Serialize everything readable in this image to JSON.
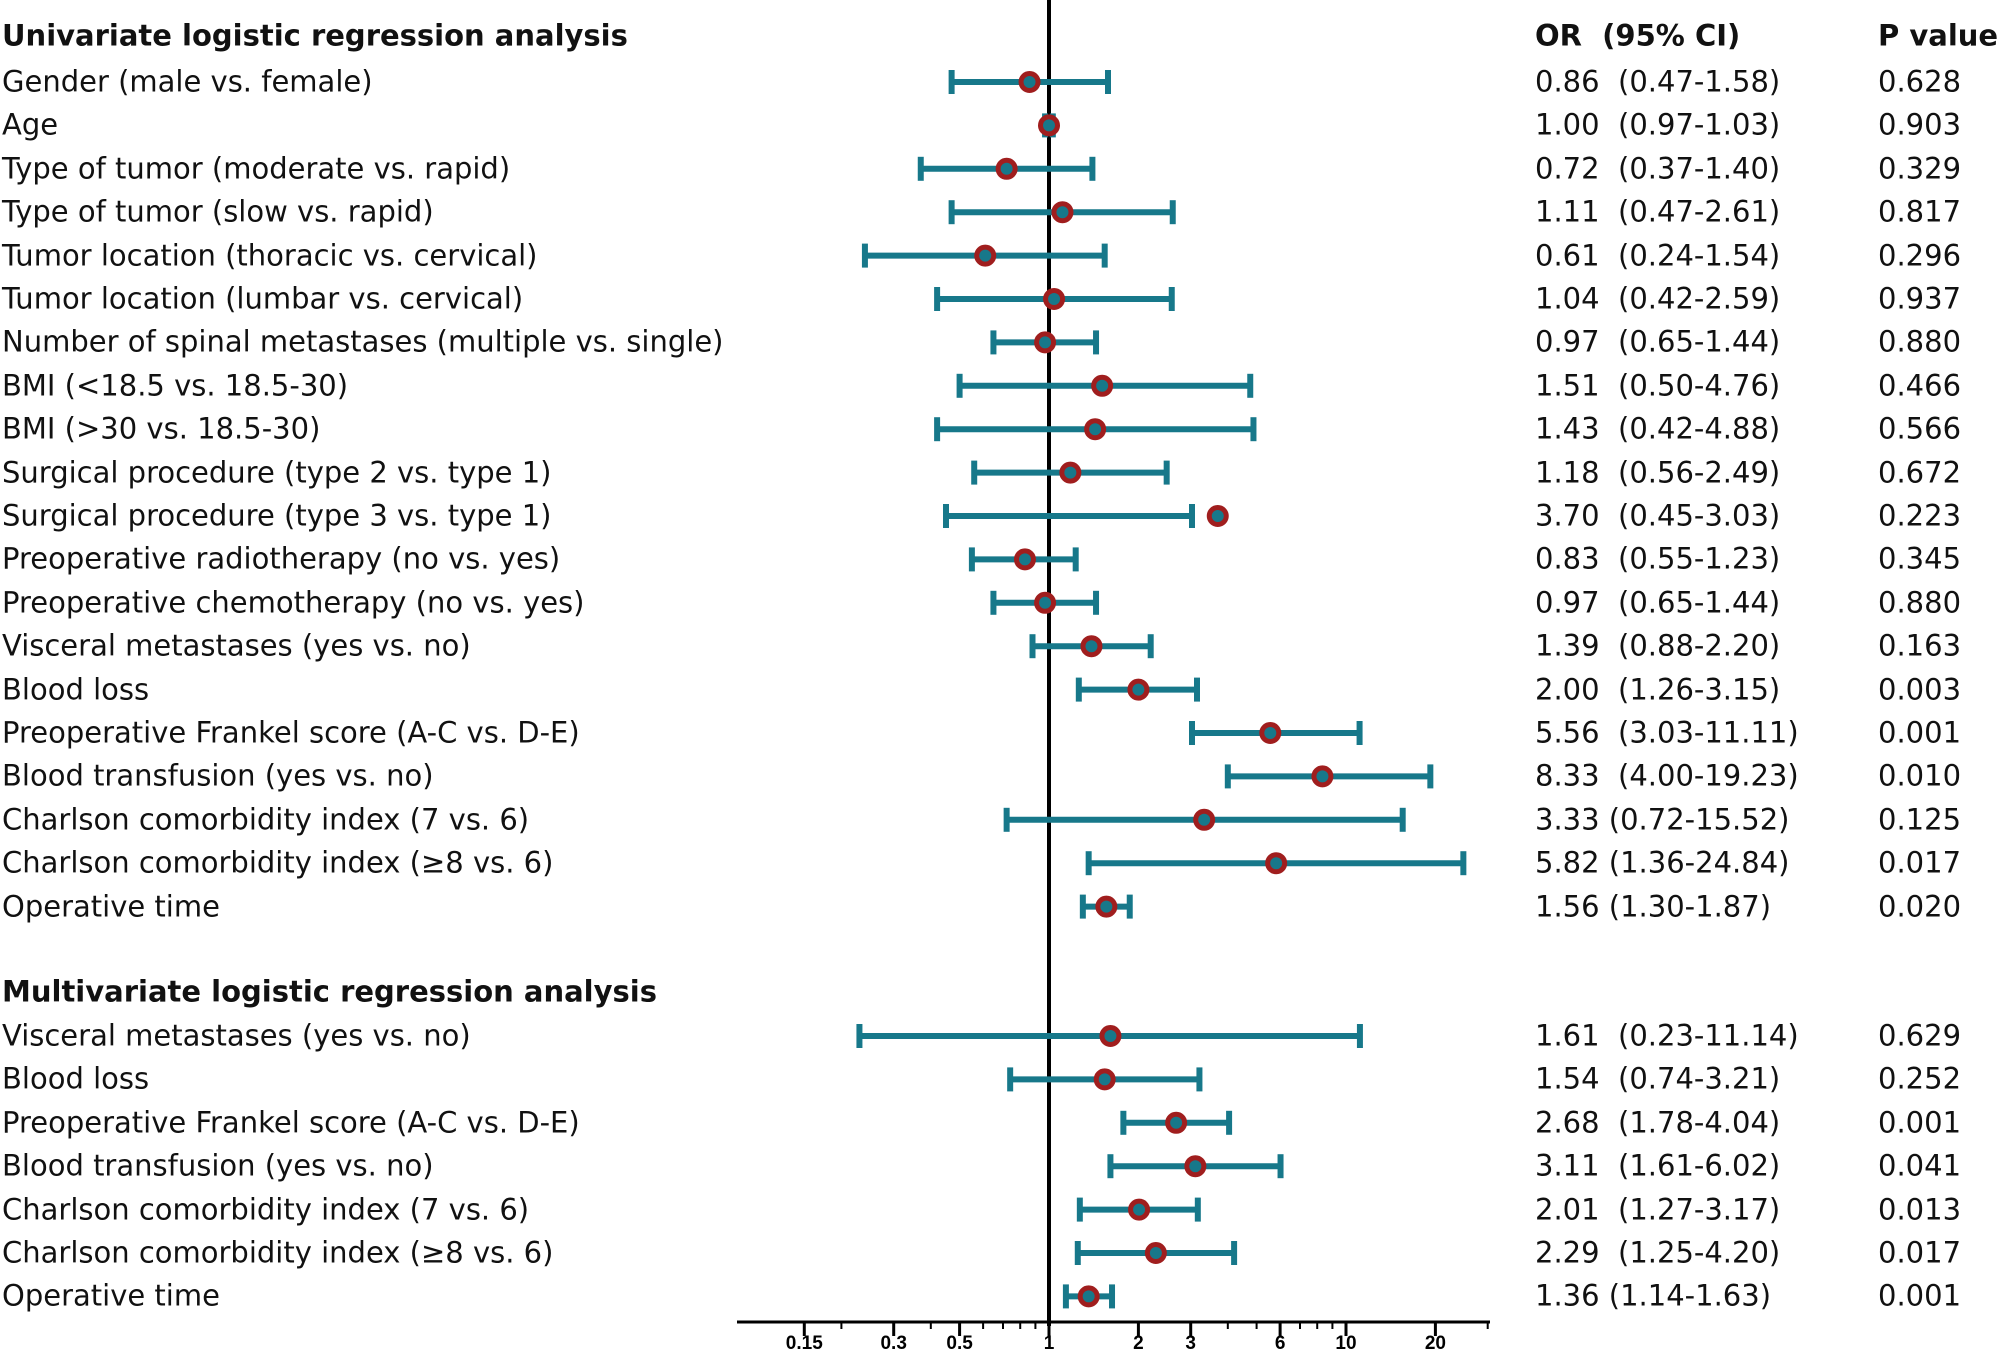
{
  "chart_data": {
    "type": "forest",
    "reference_value": 1,
    "x_scale": "log",
    "xlim": [
      0.1,
      30
    ],
    "x_ticks": [
      "0.15",
      "0.3",
      "0.5",
      "1",
      "2",
      "3",
      "6",
      "10",
      "20"
    ],
    "marker_color": "#a01e1e",
    "bar_color": "#17788a",
    "columns": {
      "or_header": "OR  (95% CI)",
      "p_header": "P value"
    },
    "sections": [
      {
        "title": "Univariate logistic regression analysis",
        "rows": [
          {
            "label": "Gender (male vs. female)",
            "or": 0.86,
            "lower": 0.47,
            "upper": 1.58,
            "or_text": "0.86  (0.47-1.58)",
            "p": "0.628"
          },
          {
            "label": "Age",
            "or": 1.0,
            "lower": 0.97,
            "upper": 1.03,
            "or_text": "1.00  (0.97-1.03)",
            "p": "0.903"
          },
          {
            "label": "Type of tumor (moderate vs. rapid)",
            "or": 0.72,
            "lower": 0.37,
            "upper": 1.4,
            "or_text": "0.72  (0.37-1.40)",
            "p": "0.329"
          },
          {
            "label": "Type of tumor (slow vs. rapid)",
            "or": 1.11,
            "lower": 0.47,
            "upper": 2.61,
            "or_text": "1.11  (0.47-2.61)",
            "p": "0.817"
          },
          {
            "label": "Tumor location (thoracic vs. cervical)",
            "or": 0.61,
            "lower": 0.24,
            "upper": 1.54,
            "or_text": "0.61  (0.24-1.54)",
            "p": "0.296"
          },
          {
            "label": "Tumor location (lumbar vs. cervical)",
            "or": 1.04,
            "lower": 0.42,
            "upper": 2.59,
            "or_text": "1.04  (0.42-2.59)",
            "p": "0.937"
          },
          {
            "label": "Number of spinal metastases (multiple vs. single)",
            "or": 0.97,
            "lower": 0.65,
            "upper": 1.44,
            "or_text": "0.97  (0.65-1.44)",
            "p": "0.880"
          },
          {
            "label": "BMI (<18.5 vs. 18.5-30)",
            "or": 1.51,
            "lower": 0.5,
            "upper": 4.76,
            "or_text": "1.51  (0.50-4.76)",
            "p": "0.466"
          },
          {
            "label": "BMI (>30 vs. 18.5-30)",
            "or": 1.43,
            "lower": 0.42,
            "upper": 4.88,
            "or_text": "1.43  (0.42-4.88)",
            "p": "0.566"
          },
          {
            "label": "Surgical procedure (type 2 vs. type 1)",
            "or": 1.18,
            "lower": 0.56,
            "upper": 2.49,
            "or_text": "1.18  (0.56-2.49)",
            "p": "0.672"
          },
          {
            "label": "Surgical procedure (type 3 vs. type 1)",
            "or": 3.7,
            "lower": 0.45,
            "upper": 3.03,
            "or_text": "3.70  (0.45-3.03)",
            "p": "0.223"
          },
          {
            "label": "Preoperative radiotherapy (no vs. yes)",
            "or": 0.83,
            "lower": 0.55,
            "upper": 1.23,
            "or_text": "0.83  (0.55-1.23)",
            "p": "0.345"
          },
          {
            "label": "Preoperative chemotherapy (no vs. yes)",
            "or": 0.97,
            "lower": 0.65,
            "upper": 1.44,
            "or_text": "0.97  (0.65-1.44)",
            "p": "0.880"
          },
          {
            "label": "Visceral metastases (yes vs. no)",
            "or": 1.39,
            "lower": 0.88,
            "upper": 2.2,
            "or_text": "1.39  (0.88-2.20)",
            "p": "0.163"
          },
          {
            "label": "Blood loss",
            "or": 2.0,
            "lower": 1.26,
            "upper": 3.15,
            "or_text": "2.00  (1.26-3.15)",
            "p": "0.003"
          },
          {
            "label": "Preoperative Frankel score (A-C vs. D-E)",
            "or": 5.56,
            "lower": 3.03,
            "upper": 11.11,
            "or_text": "5.56  (3.03-11.11)",
            "p": "0.001"
          },
          {
            "label": "Blood transfusion (yes vs. no)",
            "or": 8.33,
            "lower": 4.0,
            "upper": 19.23,
            "or_text": "8.33  (4.00-19.23)",
            "p": "0.010"
          },
          {
            "label": "Charlson comorbidity index (7 vs. 6)",
            "or": 3.33,
            "lower": 0.72,
            "upper": 15.52,
            "or_text": "3.33 (0.72-15.52)",
            "p": "0.125"
          },
          {
            "label": "Charlson comorbidity index (≥8 vs. 6)",
            "or": 5.82,
            "lower": 1.36,
            "upper": 24.84,
            "or_text": "5.82 (1.36-24.84)",
            "p": "0.017"
          },
          {
            "label": "Operative time",
            "or": 1.56,
            "lower": 1.3,
            "upper": 1.87,
            "or_text": "1.56 (1.30-1.87)",
            "p": "0.020"
          }
        ]
      },
      {
        "title": "Multivariate logistic regression analysis",
        "rows": [
          {
            "label": "Visceral metastases (yes vs. no)",
            "or": 1.61,
            "lower": 0.23,
            "upper": 11.14,
            "or_text": "1.61  (0.23-11.14)",
            "p": "0.629"
          },
          {
            "label": "Blood loss",
            "or": 1.54,
            "lower": 0.74,
            "upper": 3.21,
            "or_text": "1.54  (0.74-3.21)",
            "p": "0.252"
          },
          {
            "label": "Preoperative Frankel score (A-C vs. D-E)",
            "or": 2.68,
            "lower": 1.78,
            "upper": 4.04,
            "or_text": "2.68  (1.78-4.04)",
            "p": "0.001"
          },
          {
            "label": "Blood transfusion (yes vs. no)",
            "or": 3.11,
            "lower": 1.61,
            "upper": 6.02,
            "or_text": "3.11  (1.61-6.02)",
            "p": "0.041"
          },
          {
            "label": "Charlson comorbidity index (7 vs. 6)",
            "or": 2.01,
            "lower": 1.27,
            "upper": 3.17,
            "or_text": "2.01  (1.27-3.17)",
            "p": "0.013"
          },
          {
            "label": "Charlson comorbidity index (≥8 vs. 6)",
            "or": 2.29,
            "lower": 1.25,
            "upper": 4.2,
            "or_text": "2.29  (1.25-4.20)",
            "p": "0.017"
          },
          {
            "label": "Operative time",
            "or": 1.36,
            "lower": 1.14,
            "upper": 1.63,
            "or_text": "1.36 (1.14-1.63)",
            "p": "0.001"
          }
        ]
      }
    ]
  }
}
